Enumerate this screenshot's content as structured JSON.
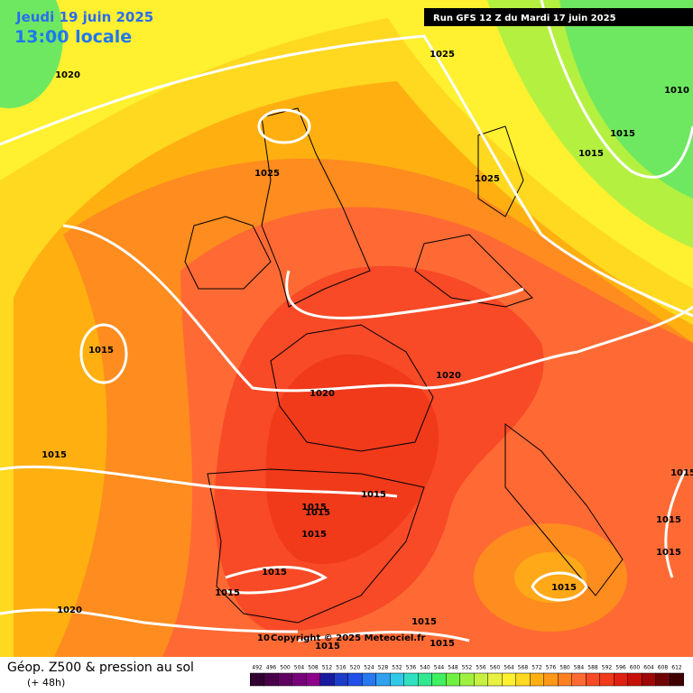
{
  "header": {
    "date": "Jeudi 19 juin 2025",
    "time": "13:00 locale",
    "run": "Run GFS 12 Z du Mardi 17 juin 2025"
  },
  "isobar_labels": [
    "1020",
    "1025",
    "1010",
    "1015",
    "1015",
    "1025",
    "1025",
    "1015",
    "1020",
    "1020",
    "1015",
    "1015",
    "1015",
    "1015",
    "1015",
    "1015",
    "1015",
    "1015",
    "1015",
    "1015",
    "1020",
    "1015",
    "1015",
    "1015",
    "1015",
    "10"
  ],
  "copyright": "Copyright © 2025 Meteociel.fr",
  "legend": {
    "title": "Géop. Z500 & pression au sol",
    "subtitle": "(+ 48h)",
    "scale_labels": [
      492,
      496,
      500,
      504,
      508,
      512,
      516,
      520,
      524,
      528,
      532,
      536,
      540,
      544,
      548,
      552,
      556,
      560,
      564,
      568,
      572,
      576,
      580,
      584,
      588,
      592,
      596,
      600,
      604,
      608,
      612
    ]
  }
}
